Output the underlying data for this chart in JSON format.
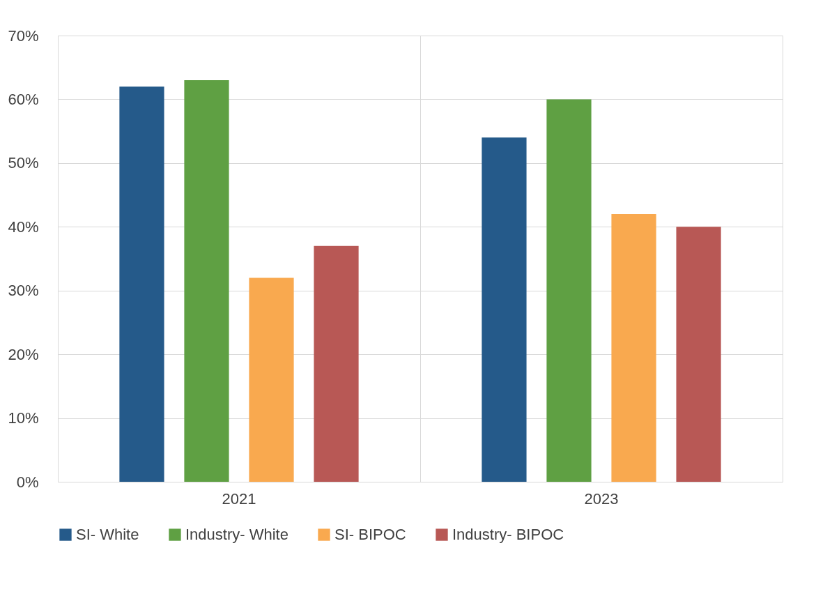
{
  "chart_data": {
    "type": "bar",
    "categories": [
      "2021",
      "2023"
    ],
    "series": [
      {
        "name": "SI- White",
        "color": "#255a8a",
        "values": [
          62,
          54
        ]
      },
      {
        "name": "Industry- White",
        "color": "#5fa043",
        "values": [
          63,
          60
        ]
      },
      {
        "name": "SI- BIPOC",
        "color": "#f9a94f",
        "values": [
          32,
          42
        ]
      },
      {
        "name": "Industry- BIPOC",
        "color": "#b85855",
        "values": [
          37,
          40
        ]
      }
    ],
    "ylim": [
      0,
      70
    ],
    "yticks": [
      {
        "value": 0,
        "label": "0%"
      },
      {
        "value": 10,
        "label": "10%"
      },
      {
        "value": 20,
        "label": "20%"
      },
      {
        "value": 30,
        "label": "30%"
      },
      {
        "value": 40,
        "label": "40%"
      },
      {
        "value": 50,
        "label": "50%"
      },
      {
        "value": 60,
        "label": "60%"
      },
      {
        "value": 70,
        "label": "70%"
      }
    ],
    "grid": true,
    "legend": "bottom"
  }
}
